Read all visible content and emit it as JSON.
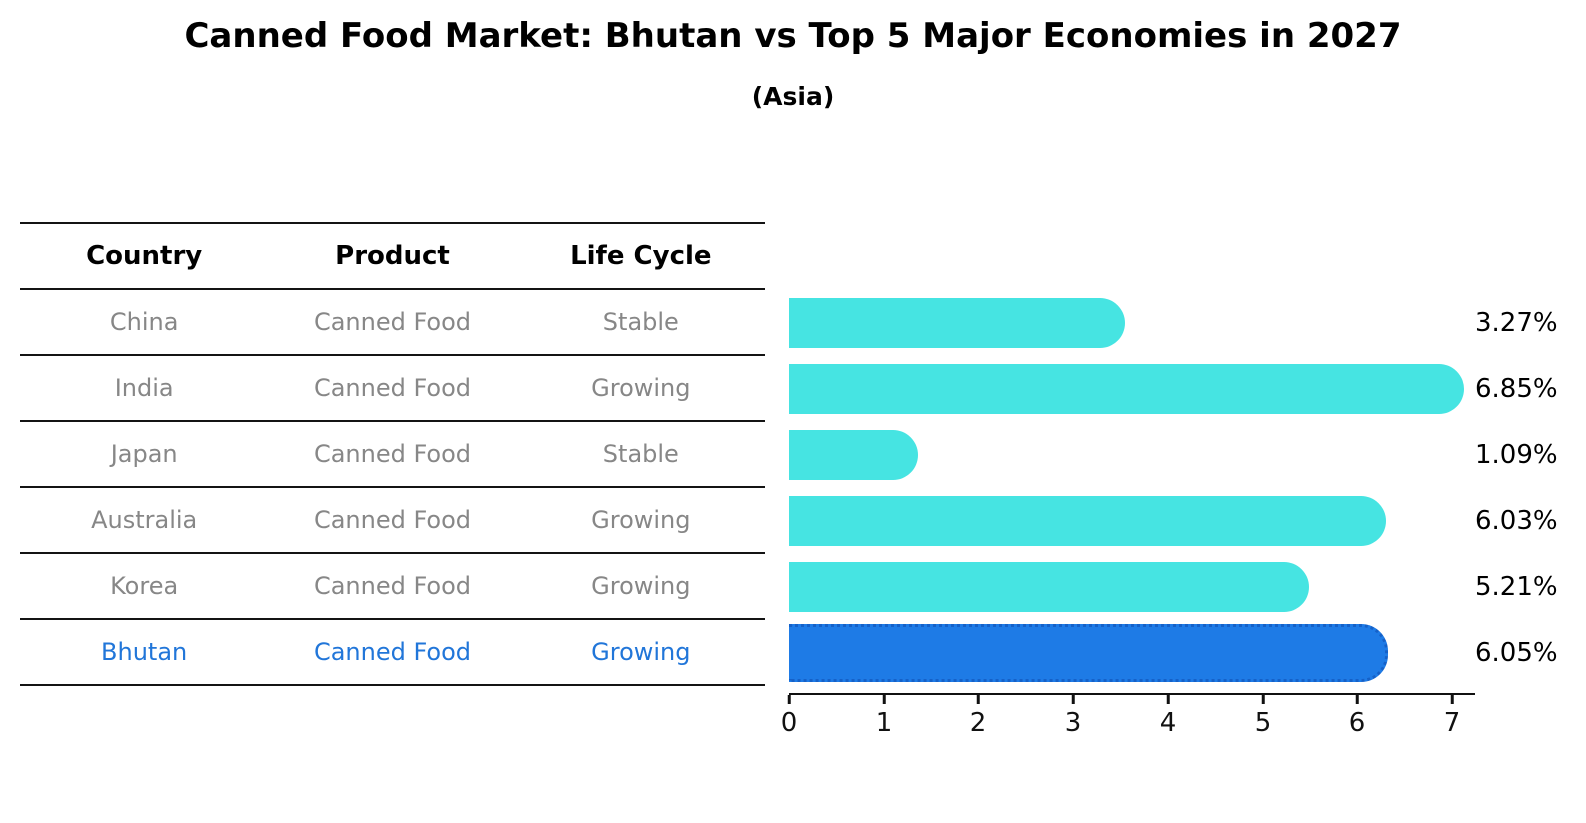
{
  "chart_data": {
    "type": "bar",
    "orientation": "horizontal",
    "title": "Canned Food Market: Bhutan vs Top 5 Major Economies in 2027",
    "subtitle": "(Asia)",
    "categories": [
      "China",
      "India",
      "Japan",
      "Australia",
      "Korea",
      "Bhutan"
    ],
    "values": [
      3.27,
      6.85,
      1.09,
      6.03,
      5.21,
      6.05
    ],
    "value_labels": [
      "3.27%",
      "6.85%",
      "1.09%",
      "6.03%",
      "5.21%",
      "6.05%"
    ],
    "x_ticks": [
      "0",
      "1",
      "2",
      "3",
      "4",
      "5",
      "6",
      "7"
    ],
    "xlim": [
      0,
      7.22
    ],
    "grid": false,
    "legend": false,
    "bar_color": "#46E4E2",
    "highlight_bar_color": "#1E7BE6",
    "highlight_index": 5
  },
  "table": {
    "headers": [
      "Country",
      "Product",
      "Life Cycle"
    ],
    "rows": [
      {
        "country": "China",
        "product": "Canned Food",
        "life_cycle": "Stable",
        "highlight": false
      },
      {
        "country": "India",
        "product": "Canned Food",
        "life_cycle": "Growing",
        "highlight": false
      },
      {
        "country": "Japan",
        "product": "Canned Food",
        "life_cycle": "Stable",
        "highlight": false
      },
      {
        "country": "Australia",
        "product": "Canned Food",
        "life_cycle": "Growing",
        "highlight": false
      },
      {
        "country": "Korea",
        "product": "Canned Food",
        "life_cycle": "Growing",
        "highlight": false
      },
      {
        "country": "Bhutan",
        "product": "Canned Food",
        "life_cycle": "Growing",
        "highlight": true
      }
    ],
    "text_color": "#878787",
    "highlight_text_color": "#2176D9"
  }
}
